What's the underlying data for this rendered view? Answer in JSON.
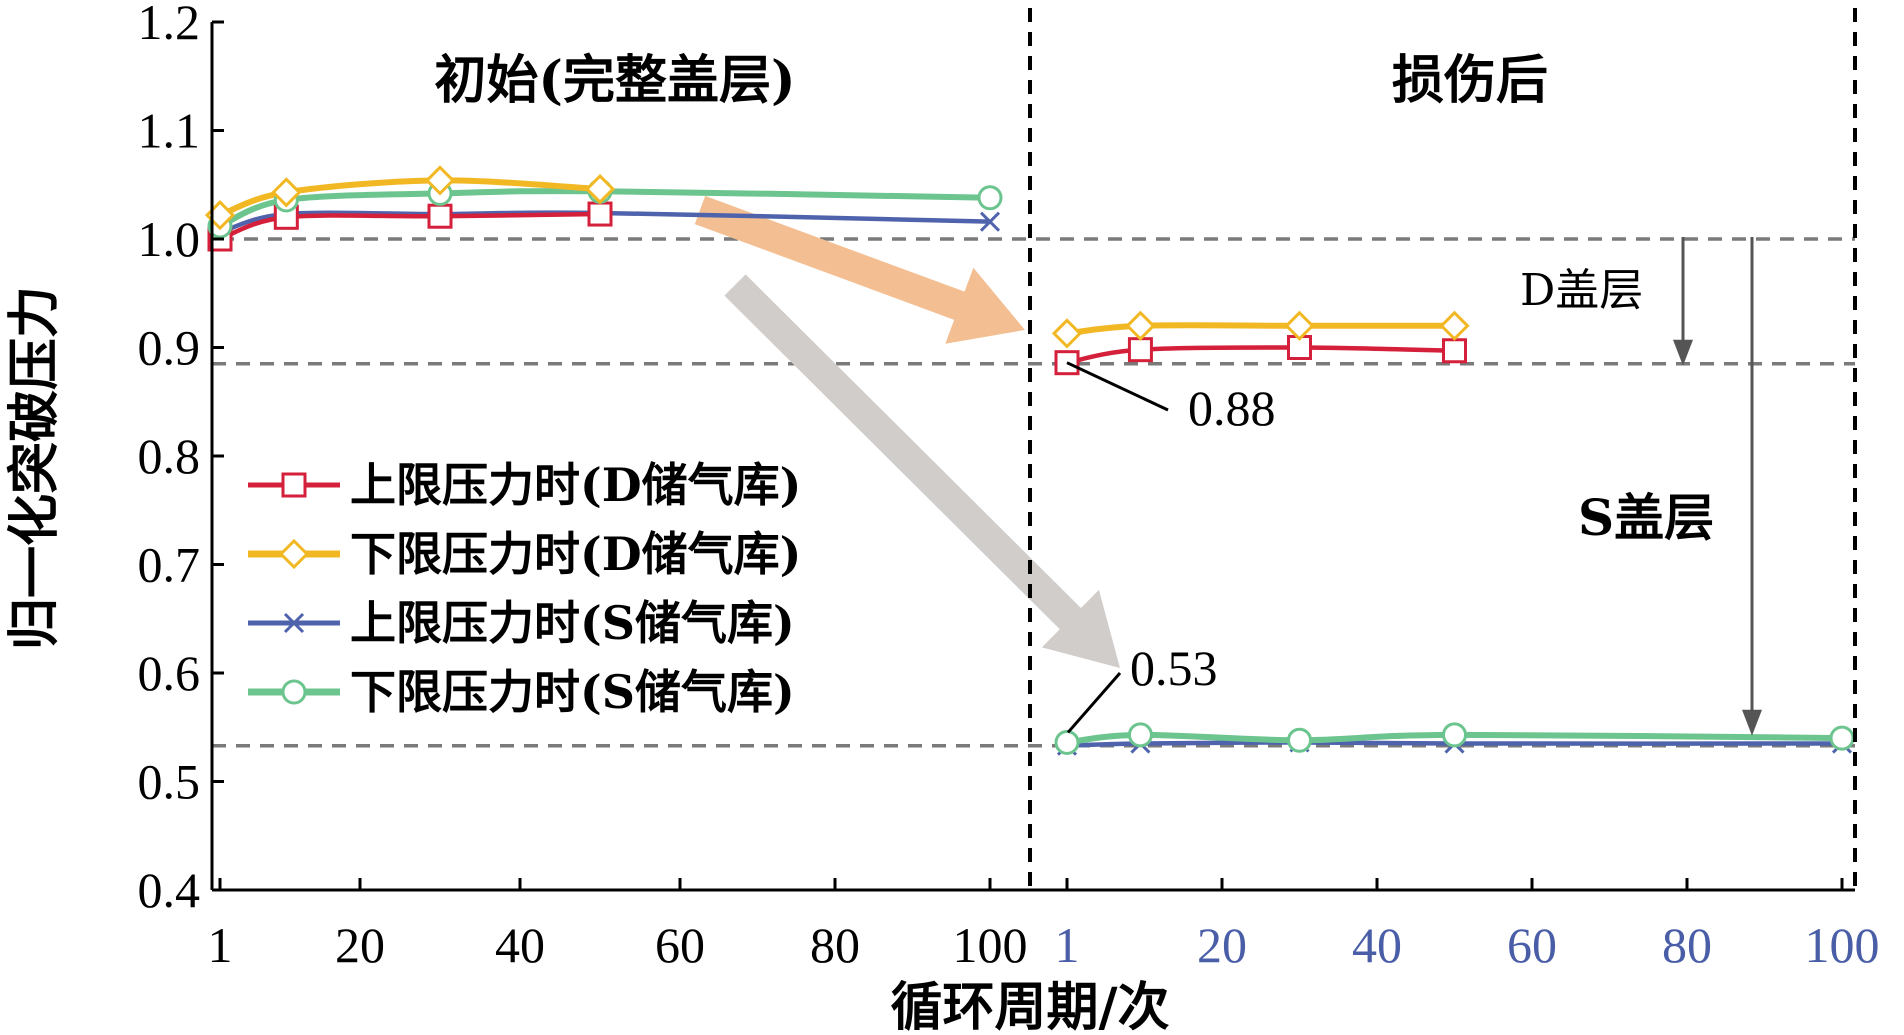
{
  "chart_data": {
    "type": "line",
    "ylabel": "归一化突破压力",
    "xlabel": "循环周期/次",
    "ylim": [
      0.4,
      1.2
    ],
    "yticks": [
      "0.4",
      "0.5",
      "0.6",
      "0.7",
      "0.8",
      "0.9",
      "1.0",
      "1.1",
      "1.2"
    ],
    "grid": false,
    "legend_position": "left-middle",
    "panels": [
      {
        "title": "初始(完整盖层)",
        "xticks": [
          "1",
          "20",
          "40",
          "60",
          "80",
          "100"
        ],
        "tick_color": "#000000",
        "series": [
          {
            "name": "上限压力时(D储气库)",
            "color": "#d4203a",
            "marker": "square",
            "x": [
              1,
              10,
              30,
              50
            ],
            "y": [
              1.0,
              1.02,
              1.021,
              1.023
            ]
          },
          {
            "name": "下限压力时(D储气库)",
            "color": "#f2b824",
            "marker": "diamond",
            "x": [
              1,
              10,
              30,
              50
            ],
            "y": [
              1.022,
              1.043,
              1.054,
              1.046
            ]
          },
          {
            "name": "上限压力时(S储气库)",
            "color": "#4f63ad",
            "marker": "x",
            "x": [
              1,
              10,
              30,
              50,
              100
            ],
            "y": [
              1.006,
              1.023,
              1.023,
              1.024,
              1.016
            ]
          },
          {
            "name": "下限压力时(S储气库)",
            "color": "#6cc48e",
            "marker": "circle",
            "x": [
              1,
              10,
              30,
              50,
              100
            ],
            "y": [
              1.012,
              1.036,
              1.042,
              1.044,
              1.038
            ]
          }
        ]
      },
      {
        "title": "损伤后",
        "xticks": [
          "1",
          "20",
          "40",
          "60",
          "80",
          "100"
        ],
        "tick_color": "#4a5ea8",
        "series": [
          {
            "name": "上限压力时(D储气库)",
            "color": "#d4203a",
            "marker": "square",
            "x": [
              1,
              10,
              30,
              50
            ],
            "y": [
              0.886,
              0.898,
              0.9,
              0.897
            ]
          },
          {
            "name": "下限压力时(D储气库)",
            "color": "#f2b824",
            "marker": "diamond",
            "x": [
              1,
              10,
              30,
              50
            ],
            "y": [
              0.913,
              0.92,
              0.92,
              0.92
            ]
          },
          {
            "name": "上限压力时(S储气库)",
            "color": "#4f63ad",
            "marker": "x",
            "x": [
              1,
              10,
              30,
              50,
              100
            ],
            "y": [
              0.533,
              0.535,
              0.536,
              0.535,
              0.535
            ]
          },
          {
            "name": "下限压力时(S储气库)",
            "color": "#6cc48e",
            "marker": "circle",
            "x": [
              1,
              10,
              30,
              50,
              100
            ],
            "y": [
              0.536,
              0.543,
              0.538,
              0.543,
              0.54
            ]
          }
        ]
      }
    ],
    "reference_lines": [
      1.0,
      0.885,
      0.533
    ],
    "annotations": {
      "d_value": "0.88",
      "s_value": "0.53",
      "d_label": "D盖层",
      "s_label": "S盖层"
    }
  }
}
